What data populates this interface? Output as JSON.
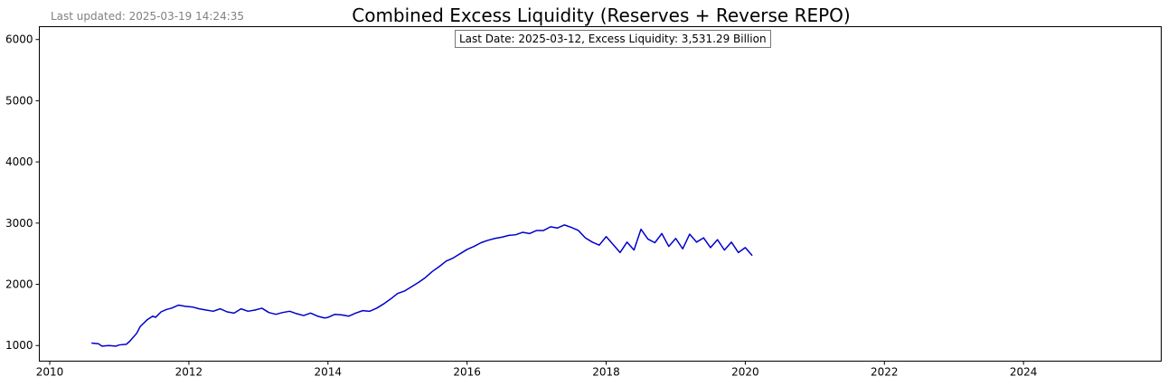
{
  "last_updated": "Last updated: 2025-03-19 14:24:35",
  "annotation": "Last Date: 2025-03-12, Excess Liquidity: 3,531.29 Billion",
  "colors": {
    "line": "#0000cc",
    "axes": "#000000",
    "muted": "#808080"
  },
  "chart_data": {
    "type": "line",
    "title": "Combined Excess Liquidity (Reserves + Reverse REPO)",
    "xlabel": "",
    "ylabel": "",
    "xlim": [
      2009.85,
      2025.98
    ],
    "ylim": [
      745,
      6210
    ],
    "x_ticks": [
      2010,
      2012,
      2014,
      2016,
      2018,
      2020,
      2022,
      2024
    ],
    "y_ticks": [
      1000,
      2000,
      3000,
      4000,
      5000,
      6000
    ],
    "grid": false,
    "legend": "none",
    "series": [
      {
        "values": [
          [
            2010.6,
            1040
          ],
          [
            2010.7,
            1030
          ],
          [
            2010.75,
            990
          ],
          [
            2010.85,
            1000
          ],
          [
            2010.95,
            990
          ],
          [
            2011.0,
            1010
          ],
          [
            2011.1,
            1020
          ],
          [
            2011.15,
            1070
          ],
          [
            2011.25,
            1200
          ],
          [
            2011.3,
            1310
          ],
          [
            2011.4,
            1420
          ],
          [
            2011.48,
            1480
          ],
          [
            2011.52,
            1460
          ],
          [
            2011.6,
            1550
          ],
          [
            2011.68,
            1590
          ],
          [
            2011.75,
            1610
          ],
          [
            2011.85,
            1660
          ],
          [
            2011.95,
            1640
          ],
          [
            2012.05,
            1630
          ],
          [
            2012.15,
            1600
          ],
          [
            2012.25,
            1580
          ],
          [
            2012.35,
            1560
          ],
          [
            2012.45,
            1600
          ],
          [
            2012.55,
            1550
          ],
          [
            2012.65,
            1530
          ],
          [
            2012.75,
            1600
          ],
          [
            2012.85,
            1560
          ],
          [
            2012.95,
            1580
          ],
          [
            2013.05,
            1610
          ],
          [
            2013.15,
            1540
          ],
          [
            2013.25,
            1510
          ],
          [
            2013.35,
            1540
          ],
          [
            2013.45,
            1560
          ],
          [
            2013.55,
            1520
          ],
          [
            2013.65,
            1490
          ],
          [
            2013.75,
            1530
          ],
          [
            2013.85,
            1480
          ],
          [
            2013.95,
            1450
          ],
          [
            2014.0,
            1460
          ],
          [
            2014.1,
            1510
          ],
          [
            2014.2,
            1500
          ],
          [
            2014.3,
            1480
          ],
          [
            2014.4,
            1530
          ],
          [
            2014.5,
            1570
          ],
          [
            2014.6,
            1560
          ],
          [
            2014.7,
            1610
          ],
          [
            2014.8,
            1680
          ],
          [
            2014.9,
            1760
          ],
          [
            2015.0,
            1850
          ],
          [
            2015.1,
            1890
          ],
          [
            2015.2,
            1960
          ],
          [
            2015.3,
            2030
          ],
          [
            2015.4,
            2110
          ],
          [
            2015.5,
            2210
          ],
          [
            2015.6,
            2290
          ],
          [
            2015.7,
            2380
          ],
          [
            2015.8,
            2430
          ],
          [
            2015.9,
            2500
          ],
          [
            2016.0,
            2570
          ],
          [
            2016.1,
            2620
          ],
          [
            2016.2,
            2680
          ],
          [
            2016.3,
            2720
          ],
          [
            2016.4,
            2750
          ],
          [
            2016.5,
            2770
          ],
          [
            2016.6,
            2800
          ],
          [
            2016.7,
            2810
          ],
          [
            2016.8,
            2850
          ],
          [
            2016.9,
            2830
          ],
          [
            2017.0,
            2880
          ],
          [
            2017.1,
            2880
          ],
          [
            2017.2,
            2940
          ],
          [
            2017.3,
            2920
          ],
          [
            2017.4,
            2970
          ],
          [
            2017.5,
            2930
          ],
          [
            2017.6,
            2880
          ],
          [
            2017.7,
            2760
          ],
          [
            2017.8,
            2690
          ],
          [
            2017.9,
            2640
          ],
          [
            2018.0,
            2780
          ],
          [
            2018.1,
            2650
          ],
          [
            2018.2,
            2520
          ],
          [
            2018.3,
            2690
          ],
          [
            2018.4,
            2560
          ],
          [
            2018.5,
            2900
          ],
          [
            2018.6,
            2740
          ],
          [
            2018.7,
            2680
          ],
          [
            2018.8,
            2830
          ],
          [
            2018.9,
            2620
          ],
          [
            2019.0,
            2750
          ],
          [
            2019.1,
            2580
          ],
          [
            2019.2,
            2820
          ],
          [
            2019.3,
            2690
          ],
          [
            2019.4,
            2760
          ],
          [
            2019.5,
            2600
          ],
          [
            2019.6,
            2730
          ],
          [
            2019.7,
            2560
          ],
          [
            2019.8,
            2690
          ],
          [
            2019.9,
            2520
          ],
          [
            2020.0,
            2600
          ],
          [
            2020.1,
            2470
          ]
        ]
      }
    ]
  }
}
